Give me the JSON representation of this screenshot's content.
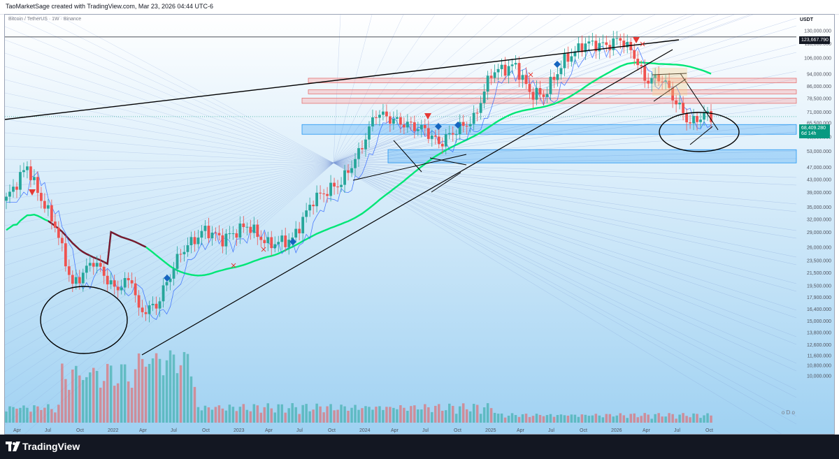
{
  "header": {
    "credit": "TaoMarketSage created with TradingView.com, Mar 23, 2026 04:44 UTC-6"
  },
  "chart_header": {
    "symbol": "Bitcoin / TetherUS · 1W · Binance",
    "currency": "USDT"
  },
  "price_labels": {
    "ath_line": "123,667.790",
    "current_price": "68,409.280",
    "countdown": "6d 14h"
  },
  "footer": {
    "brand": "TradingView",
    "nav": "o D o"
  },
  "colors": {
    "up": "#26a69a",
    "down": "#ef5350",
    "ma_green": "#00e676",
    "ma_dark": "#7b1630",
    "blue_line": "#2962ff",
    "support_zone": "#2196f3",
    "resistance_zone": "#f7a6a6"
  },
  "chart_data": {
    "type": "candlestick",
    "title": "Bitcoin / TetherUS · 1W · Binance",
    "y_scale": "log",
    "ylim": [
      7000,
      140000
    ],
    "y_ticks": [
      "130,000.000",
      "118,000.000",
      "106,000.000",
      "94,000.000",
      "86,000.000",
      "78,500.000",
      "71,000.000",
      "65,500.000",
      "59,000.000",
      "53,000.000",
      "47,000.000",
      "43,000.000",
      "39,000.000",
      "35,000.000",
      "32,000.000",
      "29,000.000",
      "26,000.000",
      "23,500.000",
      "21,500.000",
      "19,500.000",
      "17,900.000",
      "16,400.000",
      "15,000.000",
      "13,800.000",
      "12,600.000",
      "11,600.000",
      "10,800.000",
      "10,000.000"
    ],
    "anchors": [
      {
        "i": 0,
        "price": 37000
      },
      {
        "i": 6,
        "price": 47500
      },
      {
        "i": 9,
        "price": 39000
      },
      {
        "i": 14,
        "price": 30500
      },
      {
        "i": 19,
        "price": 19500
      },
      {
        "i": 25,
        "price": 23500
      },
      {
        "i": 31,
        "price": 19000
      },
      {
        "i": 36,
        "price": 20500
      },
      {
        "i": 38,
        "price": 16000
      },
      {
        "i": 43,
        "price": 16800
      },
      {
        "i": 50,
        "price": 25000
      },
      {
        "i": 57,
        "price": 29500
      },
      {
        "i": 62,
        "price": 27500
      },
      {
        "i": 69,
        "price": 30500
      },
      {
        "i": 75,
        "price": 26500
      },
      {
        "i": 82,
        "price": 27500
      },
      {
        "i": 88,
        "price": 37000
      },
      {
        "i": 96,
        "price": 42000
      },
      {
        "i": 101,
        "price": 52000
      },
      {
        "i": 106,
        "price": 70500
      },
      {
        "i": 112,
        "price": 66000
      },
      {
        "i": 120,
        "price": 62000
      },
      {
        "i": 124,
        "price": 56000
      },
      {
        "i": 129,
        "price": 62000
      },
      {
        "i": 134,
        "price": 67000
      },
      {
        "i": 139,
        "price": 95000
      },
      {
        "i": 146,
        "price": 100000
      },
      {
        "i": 150,
        "price": 82000
      },
      {
        "i": 154,
        "price": 80000
      },
      {
        "i": 160,
        "price": 104000
      },
      {
        "i": 166,
        "price": 118000
      },
      {
        "i": 172,
        "price": 116000
      },
      {
        "i": 176,
        "price": 122000
      },
      {
        "i": 180,
        "price": 108000
      },
      {
        "i": 183,
        "price": 90000
      },
      {
        "i": 188,
        "price": 91000
      },
      {
        "i": 192,
        "price": 76000
      },
      {
        "i": 196,
        "price": 65000
      },
      {
        "i": 200,
        "price": 69500
      },
      {
        "i": 202,
        "price": 68400
      }
    ],
    "series": [
      {
        "name": "",
        "type": "candles"
      },
      {
        "name": "",
        "type": "moving-average",
        "color": "#00e676"
      },
      {
        "name": "",
        "type": "trailing-line",
        "color": "#2962ff"
      }
    ],
    "levels": [
      {
        "label": "123,667.790",
        "price": 123667.79
      },
      {
        "label": "68,409.280",
        "price": 68409.28
      }
    ],
    "zones": [
      {
        "kind": "resistance",
        "low": 88000,
        "high": 91000
      },
      {
        "kind": "resistance",
        "low": 81000,
        "high": 83500
      },
      {
        "kind": "resistance",
        "low": 75500,
        "high": 78500
      },
      {
        "kind": "support",
        "low": 60000,
        "high": 64500
      },
      {
        "kind": "support",
        "low": 48500,
        "high": 53500
      }
    ],
    "x_ticks": [
      "Apr",
      "Jul",
      "Oct",
      "2022",
      "Apr",
      "Jul",
      "Oct",
      "2023",
      "Apr",
      "Jul",
      "Oct",
      "2024",
      "Apr",
      "Jul",
      "Oct",
      "2025",
      "Apr",
      "Jul",
      "Oct",
      "2026",
      "Apr",
      "Jul",
      "Oct"
    ]
  }
}
